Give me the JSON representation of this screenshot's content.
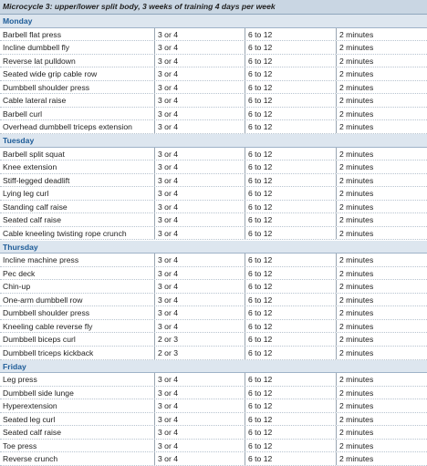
{
  "title": "Microcycle 3: upper/lower split body, 3 weeks of training 4 days per week",
  "sections": [
    {
      "day": "Monday",
      "rows": [
        [
          "Barbell flat press",
          "3 or 4",
          "6 to 12",
          "2 minutes"
        ],
        [
          "Incline dumbbell fly",
          "3 or 4",
          "6 to 12",
          "2 minutes"
        ],
        [
          "Reverse lat pulldown",
          "3 or 4",
          "6 to 12",
          "2 minutes"
        ],
        [
          "Seated wide grip cable row",
          "3 or 4",
          "6 to 12",
          "2 minutes"
        ],
        [
          "Dumbbell shoulder press",
          "3 or 4",
          "6 to 12",
          "2 minutes"
        ],
        [
          "Cable lateral raise",
          "3 or 4",
          "6 to 12",
          "2 minutes"
        ],
        [
          "Barbell curl",
          "3 or 4",
          "6 to 12",
          "2 minutes"
        ],
        [
          "Overhead dumbbell triceps extension",
          "3 or 4",
          "6 to 12",
          "2 minutes"
        ]
      ]
    },
    {
      "day": "Tuesday",
      "rows": [
        [
          "Barbell split squat",
          "3 or 4",
          "6 to 12",
          "2 minutes"
        ],
        [
          "Knee extension",
          "3 or 4",
          "6 to 12",
          "2 minutes"
        ],
        [
          "Stiff-legged deadlift",
          "3 or 4",
          "6 to 12",
          "2 minutes"
        ],
        [
          "Lying leg curl",
          "3 or 4",
          "6 to 12",
          "2 minutes"
        ],
        [
          "Standing calf raise",
          "3 or 4",
          "6 to 12",
          "2 minutes"
        ],
        [
          "Seated calf raise",
          "3 or 4",
          "6 to 12",
          "2 minutes"
        ],
        [
          "Cable kneeling twisting rope crunch",
          "3 or 4",
          "6 to 12",
          "2 minutes"
        ]
      ]
    },
    {
      "day": "Thursday",
      "rows": [
        [
          "Incline machine press",
          "3 or 4",
          "6 to 12",
          "2 minutes"
        ],
        [
          "Pec deck",
          "3 or 4",
          "6 to 12",
          "2 minutes"
        ],
        [
          "Chin-up",
          "3 or 4",
          "6 to 12",
          "2 minutes"
        ],
        [
          "One-arm dumbbell row",
          "3 or 4",
          "6 to 12",
          "2 minutes"
        ],
        [
          "Dumbbell shoulder press",
          "3 or 4",
          "6 to 12",
          "2 minutes"
        ],
        [
          "Kneeling cable reverse fly",
          "3 or 4",
          "6 to 12",
          "2 minutes"
        ],
        [
          "Dumbbell biceps curl",
          "2 or 3",
          "6 to 12",
          "2 minutes"
        ],
        [
          "Dumbbell triceps kickback",
          "2 or 3",
          "6 to 12",
          "2 minutes"
        ]
      ]
    },
    {
      "day": "Friday",
      "rows": [
        [
          "Leg press",
          "3 or 4",
          "6 to 12",
          "2 minutes"
        ],
        [
          "Dumbbell side lunge",
          "3 or 4",
          "6 to 12",
          "2 minutes"
        ],
        [
          "Hyperextension",
          "3 or 4",
          "6 to 12",
          "2 minutes"
        ],
        [
          "Seated leg curl",
          "3 or 4",
          "6 to 12",
          "2 minutes"
        ],
        [
          "Seated calf raise",
          "3 or 4",
          "6 to 12",
          "2 minutes"
        ],
        [
          "Toe press",
          "3 or 4",
          "6 to 12",
          "2 minutes"
        ],
        [
          "Reverse crunch",
          "3 or 4",
          "6 to 12",
          "2 minutes"
        ]
      ]
    }
  ]
}
